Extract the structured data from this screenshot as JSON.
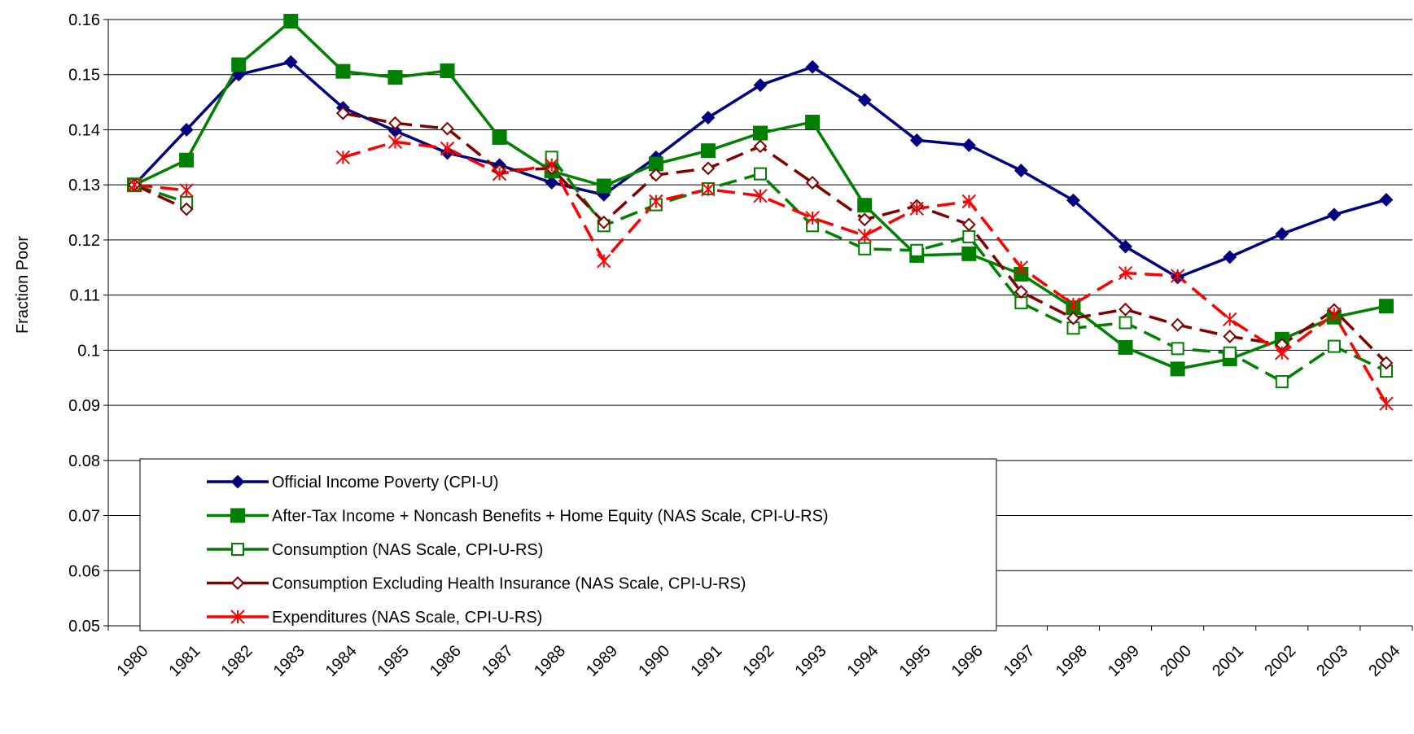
{
  "chart_data": {
    "type": "line",
    "y_label": "Fraction Poor",
    "categories": [
      "1980",
      "1981",
      "1982",
      "1983",
      "1984",
      "1985",
      "1986",
      "1987",
      "1988",
      "1989",
      "1990",
      "1991",
      "1992",
      "1993",
      "1994",
      "1995",
      "1996",
      "1997",
      "1998",
      "1999",
      "2000",
      "2001",
      "2002",
      "2003",
      "2004"
    ],
    "ylim": [
      0.05,
      0.16
    ],
    "yticks": [
      0.05,
      0.06,
      0.07,
      0.08,
      0.09,
      0.1,
      0.11,
      0.12,
      0.13,
      0.14,
      0.15,
      0.16
    ],
    "grid": true,
    "legend": "lower left",
    "series": [
      {
        "name": "Official Income Poverty (CPI-U)",
        "color": "#000080",
        "marker": "diamond",
        "fill": true,
        "dash": "solid",
        "values": [
          0.13,
          0.14,
          0.15,
          0.1523,
          0.144,
          0.1398,
          0.1358,
          0.1336,
          0.1304,
          0.1282,
          0.135,
          0.1422,
          0.1481,
          0.1514,
          0.1454,
          0.1381,
          0.1372,
          0.1326,
          0.1272,
          0.1188,
          0.1132,
          0.1169,
          0.1211,
          0.1246,
          0.1273
        ]
      },
      {
        "name": "After-Tax Income + Noncash Benefits + Home Equity (NAS Scale, CPI-U-RS)",
        "color": "#008000",
        "marker": "square",
        "fill": true,
        "dash": "solid",
        "values": [
          0.13,
          0.1345,
          0.1518,
          0.1597,
          0.1506,
          0.1495,
          0.1507,
          0.1386,
          0.1325,
          0.1298,
          0.1338,
          0.1362,
          0.1394,
          0.1414,
          0.1263,
          0.1172,
          0.1175,
          0.1138,
          0.1077,
          0.1005,
          0.0966,
          0.0984,
          0.102,
          0.106,
          0.108
        ]
      },
      {
        "name": "Consumption (NAS Scale, CPI-U-RS)",
        "color": "#008000",
        "marker": "square",
        "fill": false,
        "dash": "dashed",
        "values": [
          0.13,
          0.1268,
          null,
          null,
          null,
          null,
          null,
          null,
          0.135,
          0.1226,
          0.1264,
          0.1293,
          0.132,
          0.1226,
          0.1184,
          0.1181,
          0.1206,
          0.1086,
          0.104,
          0.105,
          0.1003,
          0.0995,
          0.0943,
          0.1007,
          0.0962
        ]
      },
      {
        "name": "Consumption Excluding Health Insurance (NAS Scale, CPI-U-RS)",
        "color": "#800000",
        "marker": "diamond",
        "fill": false,
        "dash": "dashed",
        "values": [
          0.13,
          0.1256,
          null,
          null,
          0.143,
          0.1412,
          0.1402,
          0.1326,
          0.133,
          0.1232,
          0.1318,
          0.133,
          0.137,
          0.1304,
          0.1237,
          0.1262,
          0.1228,
          0.1106,
          0.1058,
          0.1074,
          0.1046,
          0.1025,
          0.101,
          0.1073,
          0.0977
        ]
      },
      {
        "name": "Expenditures (NAS Scale, CPI-U-RS)",
        "color": "#ff0000",
        "marker": "star",
        "fill": false,
        "dash": "dashed",
        "values": [
          0.13,
          0.129,
          null,
          null,
          0.135,
          0.1378,
          0.1366,
          0.132,
          0.1336,
          0.1162,
          0.127,
          0.1292,
          0.128,
          0.124,
          0.1208,
          0.1257,
          0.127,
          0.115,
          0.1083,
          0.114,
          0.1135,
          0.1056,
          0.0995,
          0.1065,
          0.0903
        ]
      }
    ]
  }
}
